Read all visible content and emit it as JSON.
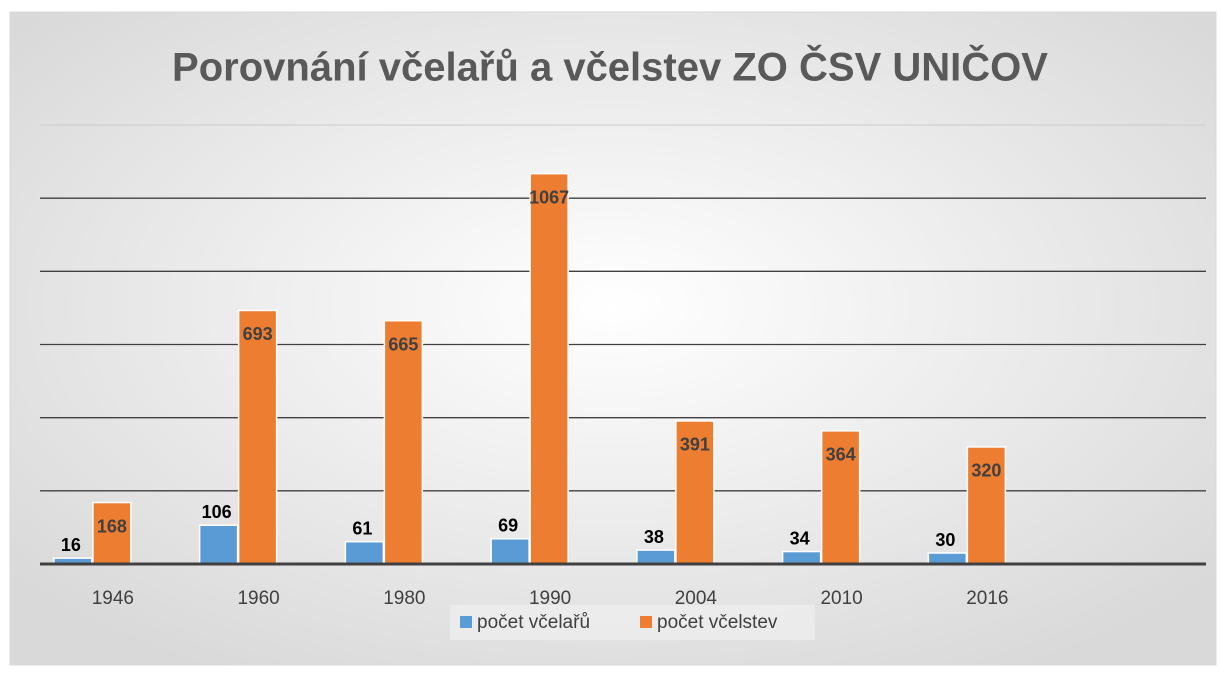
{
  "chart_data": {
    "type": "bar",
    "title": "Porovnání včelařů a včelstev ZO ČSV UNIČOV",
    "categories": [
      "1946",
      "1960",
      "1980",
      "1990",
      "2004",
      "2010",
      "2016",
      null
    ],
    "series": [
      {
        "name": "počet včelařů",
        "color": "#5b9bd5",
        "values": [
          16,
          106,
          61,
          69,
          38,
          34,
          30,
          null
        ]
      },
      {
        "name": "počet včelstev",
        "color": "#ed7d31",
        "values": [
          168,
          693,
          665,
          1067,
          391,
          364,
          320,
          null
        ]
      }
    ],
    "ylim": [
      0,
      1200
    ],
    "yticks": [
      0,
      200,
      400,
      600,
      800,
      1000,
      1200
    ],
    "grid": true,
    "legend": "bottom"
  }
}
